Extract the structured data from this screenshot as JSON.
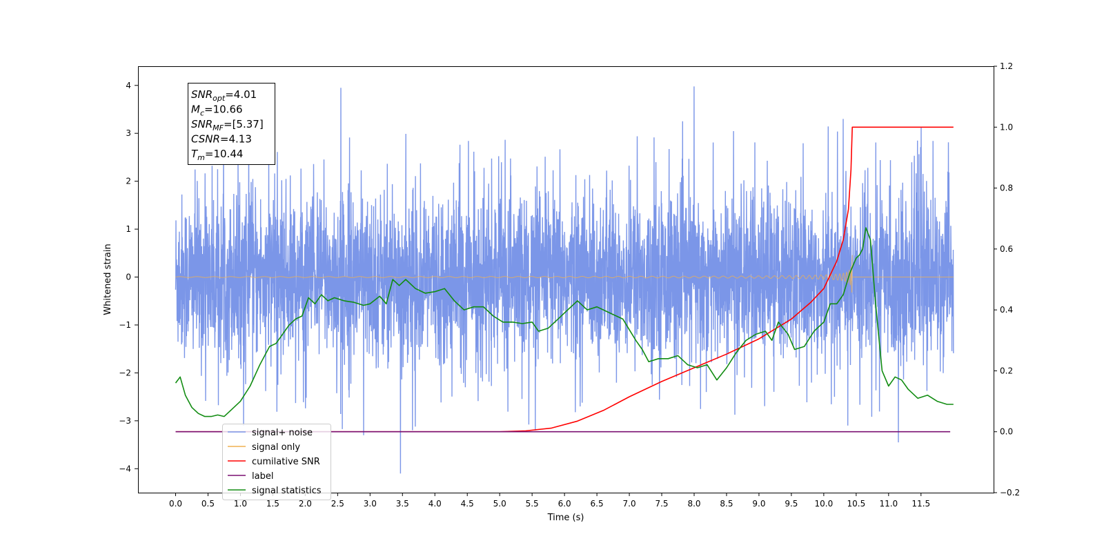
{
  "chart_data": {
    "type": "line",
    "xlabel": "Time (s)",
    "ylabel": "Whitened strain",
    "xlim": [
      -0.58,
      12.62
    ],
    "ylim": [
      -4.5,
      4.4
    ],
    "y2lim": [
      -0.2,
      1.2
    ],
    "x_ticks": [
      0.0,
      0.5,
      1.0,
      1.5,
      2.0,
      2.5,
      3.0,
      3.5,
      4.0,
      4.5,
      5.0,
      5.5,
      6.0,
      6.5,
      7.0,
      7.5,
      8.0,
      8.5,
      9.0,
      9.5,
      10.0,
      10.5,
      11.0,
      11.5
    ],
    "x_tick_labels": [
      "0.0",
      "0.5",
      "1.0",
      "1.5",
      "2.0",
      "2.5",
      "3.0",
      "3.5",
      "4.0",
      "4.5",
      "5.0",
      "5.5",
      "6.0",
      "6.5",
      "7.0",
      "7.5",
      "8.0",
      "8.5",
      "9.0",
      "9.5",
      "10.0",
      "10.5",
      "11.0",
      "11.5"
    ],
    "y_ticks": [
      -4,
      -3,
      -2,
      -1,
      0,
      1,
      2,
      3,
      4
    ],
    "y_tick_labels": [
      "−4",
      "−3",
      "−2",
      "−1",
      "0",
      "1",
      "2",
      "3",
      "4"
    ],
    "y2_ticks": [
      -0.2,
      0.0,
      0.2,
      0.4,
      0.6,
      0.8,
      1.0,
      1.2
    ],
    "y2_tick_labels": [
      "−0.2",
      "0.0",
      "0.2",
      "0.4",
      "0.6",
      "0.8",
      "1.0",
      "1.2"
    ],
    "grid": false,
    "legend_position": "lower-left",
    "annotation_lines": [
      {
        "base": "SNR",
        "sub": "opt",
        "value": "=4.01"
      },
      {
        "base": "M",
        "sub": "c",
        "value": "=10.66"
      },
      {
        "base": "SNR",
        "sub": "MF",
        "value": "=[5.37]"
      },
      {
        "base": "CSNR",
        "sub": "",
        "value": "=4.13"
      },
      {
        "base": "T",
        "sub": "m",
        "value": "=10.44"
      }
    ],
    "series": [
      {
        "name": "signal+ noise",
        "color": "#7b96e8",
        "axis": "left",
        "kind": "noise",
        "x_range": [
          0.0,
          12.0
        ],
        "band": [
          -1.5,
          1.4
        ],
        "peak_max": 4.0,
        "peak_min": -4.1,
        "spikes": [
          [
            2.55,
            3.95
          ],
          [
            8.0,
            3.98
          ],
          [
            3.47,
            -4.1
          ],
          [
            11.15,
            -3.45
          ],
          [
            1.05,
            -3.1
          ],
          [
            2.9,
            -3.3
          ],
          [
            5.55,
            -3.2
          ],
          [
            10.3,
            3.3
          ]
        ]
      },
      {
        "name": "signal only",
        "color": "#f0b050",
        "axis": "left",
        "kind": "chirp",
        "x_range": [
          0.0,
          10.44
        ],
        "peak_amplitude": 0.55
      },
      {
        "name": "cumilative SNR",
        "color": "#ff0000",
        "axis": "right",
        "x": [
          0.0,
          5.0,
          5.4,
          5.8,
          6.2,
          6.6,
          7.0,
          7.5,
          8.0,
          8.5,
          9.0,
          9.5,
          9.8,
          10.0,
          10.2,
          10.3,
          10.38,
          10.42,
          10.44,
          11.0,
          11.6,
          12.0
        ],
        "y": [
          0.0,
          0.0,
          0.003,
          0.012,
          0.035,
          0.07,
          0.115,
          0.165,
          0.21,
          0.255,
          0.305,
          0.37,
          0.425,
          0.47,
          0.56,
          0.63,
          0.73,
          0.86,
          1.0,
          1.0,
          1.0,
          1.0
        ]
      },
      {
        "name": "label",
        "color": "#7a0f70",
        "axis": "right",
        "x": [
          0.0,
          11.95
        ],
        "y": [
          0.0,
          0.0
        ]
      },
      {
        "name": "signal statistics",
        "color": "#118c11",
        "axis": "right",
        "x": [
          0.0,
          0.07,
          0.15,
          0.25,
          0.35,
          0.45,
          0.55,
          0.65,
          0.75,
          0.85,
          1.0,
          1.15,
          1.3,
          1.45,
          1.55,
          1.65,
          1.75,
          1.85,
          1.95,
          2.05,
          2.15,
          2.25,
          2.35,
          2.45,
          2.6,
          2.75,
          2.9,
          3.0,
          3.15,
          3.25,
          3.35,
          3.45,
          3.55,
          3.7,
          3.85,
          4.0,
          4.15,
          4.3,
          4.45,
          4.6,
          4.75,
          4.9,
          5.05,
          5.2,
          5.35,
          5.5,
          5.6,
          5.75,
          5.9,
          6.05,
          6.2,
          6.35,
          6.5,
          6.7,
          6.9,
          7.1,
          7.2,
          7.3,
          7.45,
          7.6,
          7.75,
          7.9,
          8.05,
          8.2,
          8.35,
          8.5,
          8.65,
          8.8,
          8.95,
          9.1,
          9.2,
          9.3,
          9.45,
          9.55,
          9.7,
          9.85,
          10.0,
          10.1,
          10.2,
          10.3,
          10.4,
          10.5,
          10.55,
          10.6,
          10.65,
          10.72,
          10.8,
          10.9,
          11.0,
          11.1,
          11.2,
          11.3,
          11.45,
          11.6,
          11.75,
          11.9,
          12.0
        ],
        "y": [
          0.16,
          0.18,
          0.12,
          0.08,
          0.06,
          0.05,
          0.05,
          0.055,
          0.05,
          0.07,
          0.1,
          0.15,
          0.22,
          0.28,
          0.29,
          0.32,
          0.35,
          0.37,
          0.38,
          0.44,
          0.42,
          0.45,
          0.43,
          0.44,
          0.43,
          0.425,
          0.415,
          0.42,
          0.445,
          0.42,
          0.5,
          0.48,
          0.5,
          0.47,
          0.455,
          0.46,
          0.47,
          0.43,
          0.4,
          0.41,
          0.41,
          0.38,
          0.36,
          0.36,
          0.355,
          0.36,
          0.33,
          0.34,
          0.37,
          0.4,
          0.43,
          0.4,
          0.41,
          0.39,
          0.37,
          0.3,
          0.27,
          0.23,
          0.24,
          0.24,
          0.25,
          0.22,
          0.21,
          0.22,
          0.17,
          0.21,
          0.26,
          0.3,
          0.32,
          0.33,
          0.3,
          0.36,
          0.32,
          0.27,
          0.28,
          0.33,
          0.36,
          0.42,
          0.42,
          0.45,
          0.52,
          0.57,
          0.58,
          0.6,
          0.67,
          0.63,
          0.42,
          0.2,
          0.15,
          0.18,
          0.17,
          0.14,
          0.11,
          0.12,
          0.1,
          0.09,
          0.09
        ]
      }
    ]
  }
}
